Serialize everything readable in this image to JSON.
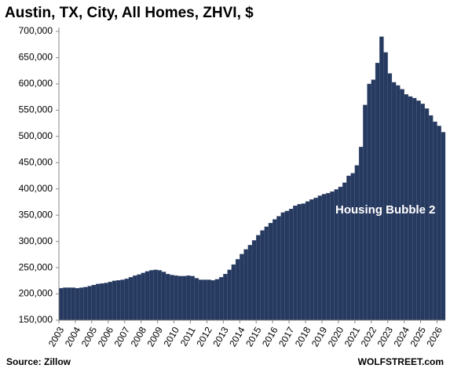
{
  "chart_data": {
    "type": "bar",
    "title": "Austin, TX, City, All Homes, ZHVI, $",
    "annotation": "Housing Bubble 2",
    "source": "Source: Zillow",
    "credit": "WOLFSTREET.com",
    "color": "#26395f",
    "categories": [
      "2003",
      null,
      null,
      null,
      "2004",
      null,
      null,
      null,
      "2005",
      null,
      null,
      null,
      "2006",
      null,
      null,
      null,
      "2007",
      null,
      null,
      null,
      "2008",
      null,
      null,
      null,
      "2009",
      null,
      null,
      null,
      "2010",
      null,
      null,
      null,
      "2011",
      null,
      null,
      null,
      "2012",
      null,
      null,
      null,
      "2013",
      null,
      null,
      null,
      "2014",
      null,
      null,
      null,
      "2015",
      null,
      null,
      null,
      "2016",
      null,
      null,
      null,
      "2017",
      null,
      null,
      null,
      "2018",
      null,
      null,
      null,
      "2019",
      null,
      null,
      null,
      "2020",
      null,
      null,
      null,
      "2021",
      null,
      null,
      null,
      "2022",
      null,
      null,
      null,
      "2023",
      null,
      null,
      null,
      "2024",
      null,
      null,
      null,
      "2025",
      null,
      null,
      null,
      "2026",
      null
    ],
    "values": [
      211000,
      212000,
      212000,
      212000,
      211000,
      212000,
      213000,
      215000,
      217000,
      219000,
      220000,
      221000,
      223000,
      225000,
      226000,
      227000,
      229000,
      232000,
      235000,
      237000,
      240000,
      243000,
      245000,
      246000,
      245000,
      242000,
      238000,
      236000,
      235000,
      234000,
      234000,
      235000,
      234000,
      230000,
      227000,
      227000,
      227000,
      226000,
      228000,
      232000,
      238000,
      246000,
      256000,
      266000,
      276000,
      285000,
      293000,
      302000,
      312000,
      321000,
      328000,
      335000,
      342000,
      348000,
      355000,
      358000,
      362000,
      368000,
      371000,
      372000,
      376000,
      380000,
      383000,
      387000,
      390000,
      392000,
      395000,
      399000,
      404000,
      412000,
      425000,
      430000,
      445000,
      480000,
      560000,
      600000,
      608000,
      640000,
      690000,
      660000,
      620000,
      603000,
      597000,
      590000,
      580000,
      576000,
      573000,
      568000,
      562000,
      553000,
      540000,
      528000,
      520000,
      508000
    ],
    "ylim": [
      150000,
      700000
    ],
    "yticks": [
      {
        "value": 150000,
        "label": "150,000"
      },
      {
        "value": 200000,
        "label": "200,000"
      },
      {
        "value": 250000,
        "label": "250,000"
      },
      {
        "value": 300000,
        "label": "300,000"
      },
      {
        "value": 350000,
        "label": "350,000"
      },
      {
        "value": 400000,
        "label": "400,000"
      },
      {
        "value": 450000,
        "label": "450,000"
      },
      {
        "value": 500000,
        "label": "500,000"
      },
      {
        "value": 550000,
        "label": "550,000"
      },
      {
        "value": 600000,
        "label": "600,000"
      },
      {
        "value": 650000,
        "label": "650,000"
      },
      {
        "value": 700000,
        "label": "700,000"
      }
    ]
  }
}
